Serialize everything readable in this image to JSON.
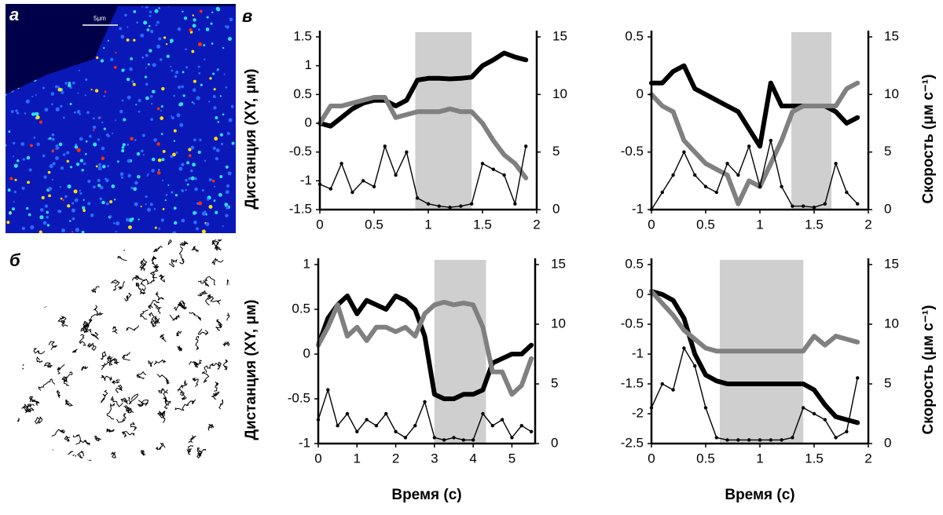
{
  "labels": [
    "а",
    "б",
    "в"
  ],
  "scale_bar": "5μm",
  "chart_data": [
    {
      "type": "line",
      "x": [
        0,
        0.1,
        0.2,
        0.3,
        0.4,
        0.5,
        0.6,
        0.7,
        0.8,
        0.9,
        1,
        1.1,
        1.2,
        1.3,
        1.4,
        1.5,
        1.6,
        1.7,
        1.8,
        1.9
      ],
      "xlim": [
        0,
        2
      ],
      "xticks": [
        0,
        0.5,
        1,
        1.5,
        2
      ],
      "ylim": [
        -1.5,
        1.5
      ],
      "yticks": [
        -1.5,
        -1,
        -0.5,
        0,
        0.5,
        1,
        1.5
      ],
      "y2lim": [
        0,
        15
      ],
      "y2ticks": [
        0,
        5,
        10,
        15
      ],
      "highlight": [
        0.88,
        1.4
      ],
      "y_label": "Дистанция (XY, μм)",
      "series": [
        {
          "color": "#000000",
          "values": [
            0,
            -0.05,
            0.1,
            0.25,
            0.35,
            0.4,
            0.4,
            0.3,
            0.4,
            0.75,
            0.78,
            0.78,
            0.77,
            0.78,
            0.8,
            1.0,
            1.1,
            1.22,
            1.15,
            1.1
          ]
        },
        {
          "color": "#808080",
          "values": [
            0,
            0.3,
            0.3,
            0.35,
            0.4,
            0.45,
            0.45,
            0.1,
            0.15,
            0.2,
            0.2,
            0.2,
            0.25,
            0.2,
            0.2,
            0,
            -0.3,
            -0.55,
            -0.7,
            -0.95
          ]
        },
        {
          "color": "#000000",
          "axis": "y2",
          "values": [
            2.2,
            1.8,
            4,
            1.5,
            2.5,
            2,
            5.5,
            3,
            5,
            1,
            0.5,
            0.3,
            0.2,
            0.3,
            0.5,
            4,
            3.5,
            3,
            0.5,
            5.5
          ]
        }
      ]
    },
    {
      "type": "line",
      "x": [
        0,
        0.1,
        0.2,
        0.3,
        0.4,
        0.5,
        0.6,
        0.7,
        0.8,
        0.9,
        1,
        1.1,
        1.2,
        1.3,
        1.4,
        1.5,
        1.6,
        1.7,
        1.8,
        1.9
      ],
      "xlim": [
        0,
        2
      ],
      "xticks": [
        0,
        0.5,
        1,
        1.5,
        2
      ],
      "ylim": [
        -1,
        0.5
      ],
      "yticks": [
        -1,
        -0.5,
        0,
        0.5
      ],
      "y2lim": [
        0,
        15
      ],
      "y2ticks": [
        0,
        5,
        10,
        15
      ],
      "highlight": [
        1.29,
        1.66
      ],
      "y2_label": "Скорость (μм с⁻¹)",
      "series": [
        {
          "color": "#000000",
          "values": [
            0.1,
            0.1,
            0.2,
            0.25,
            0.05,
            0,
            -0.05,
            -0.1,
            -0.15,
            -0.3,
            -0.45,
            0.1,
            -0.1,
            -0.1,
            -0.1,
            -0.1,
            -0.1,
            -0.15,
            -0.25,
            -0.2
          ]
        },
        {
          "color": "#808080",
          "values": [
            0,
            -0.1,
            -0.15,
            -0.4,
            -0.5,
            -0.6,
            -0.65,
            -0.7,
            -0.95,
            -0.75,
            -0.8,
            -0.6,
            -0.4,
            -0.15,
            -0.1,
            -0.1,
            -0.1,
            -0.1,
            0.05,
            0.1
          ]
        },
        {
          "color": "#000000",
          "axis": "y2",
          "values": [
            0,
            1.5,
            3,
            5,
            3,
            2,
            1.5,
            4,
            3,
            5.5,
            2,
            6,
            2,
            0.3,
            0.3,
            0.2,
            0.5,
            4,
            1.5,
            0.5
          ]
        }
      ]
    },
    {
      "type": "line",
      "x": [
        0,
        0.25,
        0.5,
        0.75,
        1,
        1.25,
        1.5,
        1.75,
        2,
        2.25,
        2.5,
        2.75,
        3,
        3.25,
        3.5,
        3.75,
        4,
        4.25,
        4.5,
        4.75,
        5,
        5.25,
        5.5
      ],
      "xlim": [
        0,
        5.6
      ],
      "xticks": [
        0,
        1,
        2,
        3,
        4,
        5
      ],
      "ylim": [
        -1,
        1
      ],
      "yticks": [
        -1,
        -0.5,
        0,
        0.5,
        1
      ],
      "y2lim": [
        0,
        15
      ],
      "y2ticks": [
        0,
        5,
        10,
        15
      ],
      "highlight": [
        3.0,
        4.33
      ],
      "y_label": "Дистанция (XY, μм)",
      "x_label": "Время (с)",
      "series": [
        {
          "color": "#000000",
          "values": [
            0.1,
            0.4,
            0.55,
            0.65,
            0.45,
            0.6,
            0.55,
            0.5,
            0.65,
            0.6,
            0.5,
            0.2,
            -0.45,
            -0.5,
            -0.5,
            -0.45,
            -0.45,
            -0.4,
            -0.1,
            -0.05,
            0,
            0,
            0.1
          ]
        },
        {
          "color": "#808080",
          "values": [
            0.1,
            0.3,
            0.55,
            0.2,
            0.3,
            0.15,
            0.3,
            0.3,
            0.25,
            0.3,
            0.2,
            0.45,
            0.55,
            0.58,
            0.55,
            0.57,
            0.55,
            0.3,
            -0.2,
            -0.2,
            -0.45,
            -0.35,
            -0.05
          ]
        },
        {
          "color": "#000000",
          "axis": "y2",
          "values": [
            2,
            4.5,
            1.5,
            2.5,
            1,
            2,
            1.5,
            2.5,
            1,
            0.5,
            1.5,
            3.5,
            0.5,
            0.3,
            0.5,
            0.3,
            0.3,
            2.5,
            1.5,
            2,
            0.5,
            1.5,
            1
          ]
        }
      ]
    },
    {
      "type": "line",
      "x": [
        0,
        0.1,
        0.2,
        0.3,
        0.4,
        0.5,
        0.6,
        0.7,
        0.8,
        0.9,
        1,
        1.1,
        1.2,
        1.3,
        1.4,
        1.5,
        1.6,
        1.7,
        1.8,
        1.9
      ],
      "xlim": [
        0,
        2
      ],
      "xticks": [
        0,
        0.5,
        1,
        1.5,
        2
      ],
      "ylim": [
        -2.5,
        0.5
      ],
      "yticks": [
        -2.5,
        -2,
        -1.5,
        -1,
        -0.5,
        0,
        0.5
      ],
      "y2lim": [
        0,
        15
      ],
      "y2ticks": [
        0,
        5,
        10,
        15
      ],
      "highlight": [
        0.63,
        1.4
      ],
      "y2_label": "Скорость (μм с⁻¹)",
      "x_label": "Время (с)",
      "series": [
        {
          "color": "#000000",
          "values": [
            0.05,
            0,
            -0.1,
            -0.4,
            -1,
            -1.35,
            -1.45,
            -1.5,
            -1.5,
            -1.5,
            -1.5,
            -1.5,
            -1.5,
            -1.5,
            -1.5,
            -1.6,
            -1.85,
            -2.05,
            -2.1,
            -2.15
          ]
        },
        {
          "color": "#808080",
          "values": [
            0.05,
            -0.15,
            -0.35,
            -0.6,
            -0.75,
            -0.9,
            -0.95,
            -0.95,
            -0.95,
            -0.95,
            -0.95,
            -0.95,
            -0.95,
            -0.95,
            -0.95,
            -0.7,
            -0.85,
            -0.7,
            -0.75,
            -0.8
          ]
        },
        {
          "color": "#000000",
          "axis": "y2",
          "values": [
            3,
            5,
            4.5,
            8,
            6.5,
            3,
            0.5,
            0.3,
            0.3,
            0.3,
            0.3,
            0.3,
            0.3,
            0.5,
            3,
            2.5,
            2,
            0.5,
            1,
            5.5
          ]
        }
      ]
    }
  ]
}
